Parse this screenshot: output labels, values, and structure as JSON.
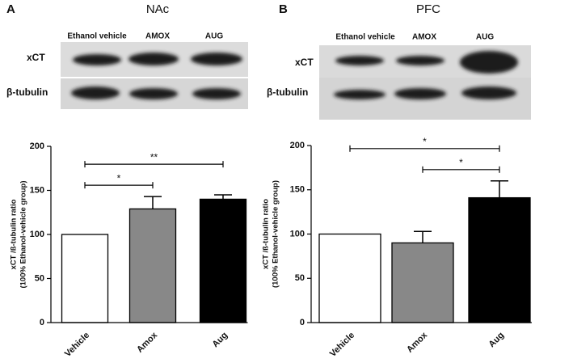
{
  "chart_data": [
    {
      "type": "bar",
      "panel": "A",
      "title": "NAc",
      "blot": {
        "columns": [
          "Ethanol vehicle",
          "AMOX",
          "AUG"
        ],
        "rows": [
          "xCT",
          "β-tubulin"
        ]
      },
      "y_label": [
        "xCT /ß-tubulin ratio",
        "(100% Ethanol-vehicle group)"
      ],
      "categories": [
        "Vehicle",
        "Amox",
        "Aug"
      ],
      "values": [
        100,
        129,
        140
      ],
      "errors": [
        0,
        14,
        5
      ],
      "colors": [
        "#ffffff",
        "#888888",
        "#000000"
      ],
      "ylim": [
        0,
        200
      ],
      "yticks": [
        0,
        50,
        100,
        150,
        200
      ],
      "annotations": [
        {
          "text": "*",
          "between": [
            "Vehicle",
            "Amox"
          ]
        },
        {
          "text": "**",
          "between": [
            "Vehicle",
            "Aug"
          ]
        }
      ]
    },
    {
      "type": "bar",
      "panel": "B",
      "title": "PFC",
      "blot": {
        "columns": [
          "Ethanol vehicle",
          "AMOX",
          "AUG"
        ],
        "rows": [
          "xCT",
          "β-tubulin"
        ]
      },
      "y_label": [
        "xCT /ß-tubulin ratio",
        "(100% Ethanol-vehicle group)"
      ],
      "categories": [
        "Vehicle",
        "Amox",
        "Aug"
      ],
      "values": [
        100,
        90,
        141
      ],
      "errors": [
        0,
        13,
        19
      ],
      "colors": [
        "#ffffff",
        "#888888",
        "#000000"
      ],
      "ylim": [
        0,
        200
      ],
      "yticks": [
        0,
        50,
        100,
        150,
        200
      ],
      "annotations": [
        {
          "text": "*",
          "between": [
            "Amox",
            "Aug"
          ]
        },
        {
          "text": "*",
          "between": [
            "Vehicle",
            "Aug"
          ]
        }
      ]
    }
  ]
}
